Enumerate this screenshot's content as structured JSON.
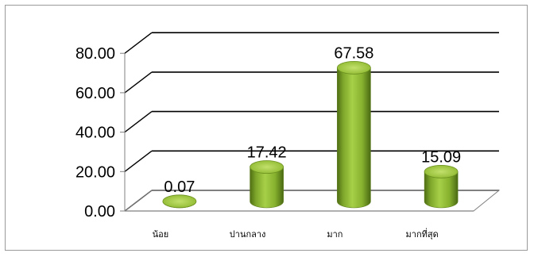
{
  "chart_data": {
    "type": "bar",
    "title": "",
    "xlabel": "",
    "ylabel": "",
    "categories": [
      "น้อย",
      "ปานกลาง",
      "มาก",
      "มากที่สุด"
    ],
    "values": [
      0.07,
      17.42,
      67.58,
      15.09
    ],
    "data_labels": [
      "0.07",
      "17.42",
      "67.58",
      "15.09"
    ],
    "y_ticks": [
      "0.00",
      "20.00",
      "40.00",
      "60.00",
      "80.00"
    ],
    "ylim": [
      0,
      80
    ],
    "grid": true,
    "legend": "none",
    "style": "3d-cylinder",
    "colors": {
      "bar": "#8db82e",
      "bar_dark": "#4f6e14",
      "bar_top": "#b3d65a",
      "gridline": "#000000",
      "axis": "#808080"
    }
  }
}
